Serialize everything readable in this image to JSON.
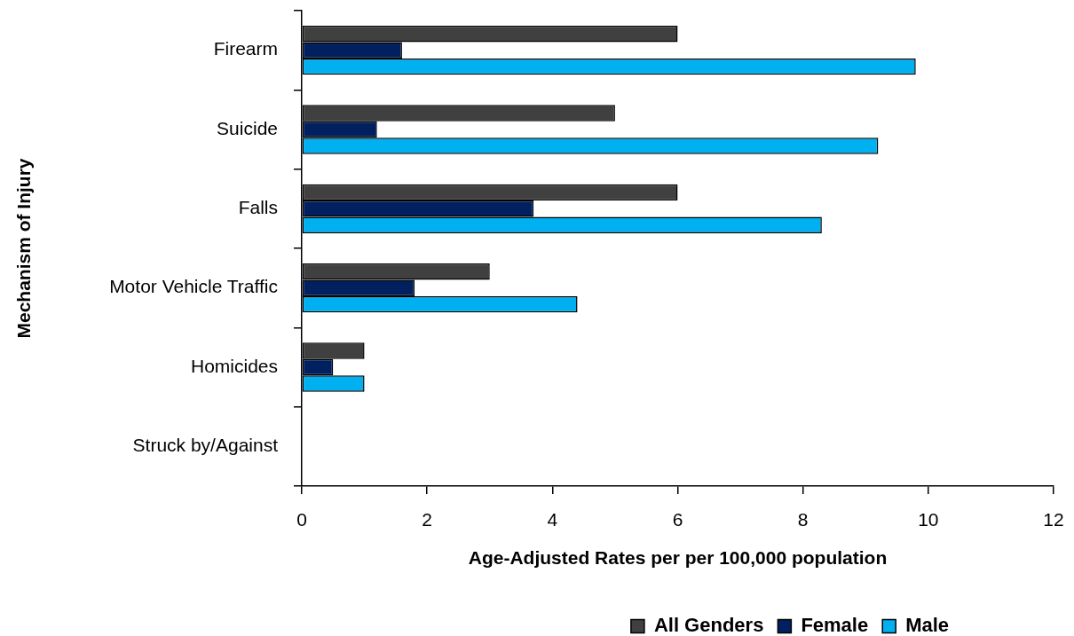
{
  "chart_data": {
    "type": "bar",
    "orientation": "horizontal",
    "xlabel": "Age-Adjusted Rates per per 100,000 population",
    "ylabel": "Mechanism of Injury",
    "categories": [
      "Firearm",
      "Suicide",
      "Falls",
      "Motor Vehicle Traffic",
      "Homicides",
      "Struck by/Against"
    ],
    "series": [
      {
        "name": "All Genders",
        "color": "#404040",
        "values": [
          6,
          5,
          6,
          3,
          1,
          null
        ]
      },
      {
        "name": "Female",
        "color": "#002060",
        "values": [
          1.6,
          1.2,
          3.7,
          1.8,
          0.5,
          null
        ]
      },
      {
        "name": "Male",
        "color": "#00b0f0",
        "values": [
          9.8,
          9.2,
          8.3,
          4.4,
          1,
          null
        ]
      }
    ],
    "xlim": [
      0,
      12
    ],
    "xticks": [
      0,
      2,
      4,
      6,
      8,
      10,
      12
    ],
    "legend": "bottom",
    "grid": false
  }
}
